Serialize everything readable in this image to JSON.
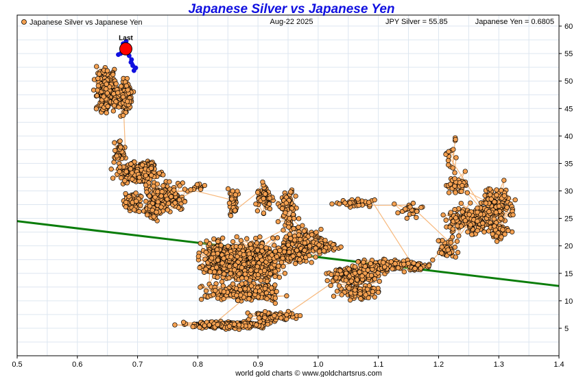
{
  "chart_data": {
    "type": "scatter",
    "title": "Japanese Silver vs Japanese Yen",
    "legend_label": "Japanese Silver vs Japanese Yen",
    "date_label": "Aug-22  2025",
    "jpy_silver_label": "JPY Silver = 55.85",
    "japanese_yen_label": "Japanese Yen = 0.6805",
    "footer": "world gold charts © www.goldchartsrus.com",
    "last_label": "Last",
    "x_ticks": [
      "0.5",
      "0.6",
      "0.7",
      "0.8",
      "0.9",
      "1.0",
      "1.1",
      "1.2",
      "1.3",
      "1.4"
    ],
    "y_ticks": [
      "5",
      "10",
      "15",
      "20",
      "25",
      "30",
      "35",
      "40",
      "45",
      "50",
      "55",
      "60"
    ],
    "xlim": [
      0.5,
      1.4
    ],
    "ylim": [
      0,
      62
    ],
    "grid": true,
    "legend_position": "top-left",
    "last_point": {
      "x": 0.6805,
      "y": 55.85
    },
    "trend_line": {
      "x1": 0.5,
      "y1": 24.5,
      "x2": 1.4,
      "y2": 12.7
    },
    "recent_series": [
      {
        "x": 0.672,
        "y": 55.0
      },
      {
        "x": 0.676,
        "y": 56.8
      },
      {
        "x": 0.681,
        "y": 57.2
      },
      {
        "x": 0.686,
        "y": 54.6
      },
      {
        "x": 0.689,
        "y": 53.4
      },
      {
        "x": 0.692,
        "y": 52.8
      },
      {
        "x": 0.694,
        "y": 51.9
      },
      {
        "x": 0.697,
        "y": 52.4
      },
      {
        "x": 0.69,
        "y": 53.9
      },
      {
        "x": 0.684,
        "y": 55.4
      },
      {
        "x": 0.668,
        "y": 54.8
      }
    ],
    "history_clusters": [
      {
        "cx": 0.648,
        "cy": 48.5,
        "sx": 0.013,
        "sy": 2.8,
        "n": 190
      },
      {
        "cx": 0.68,
        "cy": 47.0,
        "sx": 0.011,
        "sy": 2.2,
        "n": 110
      },
      {
        "cx": 0.67,
        "cy": 37.0,
        "sx": 0.007,
        "sy": 1.5,
        "n": 40
      },
      {
        "cx": 0.7,
        "cy": 33.5,
        "sx": 0.026,
        "sy": 1.5,
        "n": 190
      },
      {
        "cx": 0.745,
        "cy": 29.0,
        "sx": 0.025,
        "sy": 2.0,
        "n": 160
      },
      {
        "cx": 0.69,
        "cy": 28.0,
        "sx": 0.012,
        "sy": 1.5,
        "n": 50
      },
      {
        "cx": 0.725,
        "cy": 26.0,
        "sx": 0.01,
        "sy": 1.0,
        "n": 35
      },
      {
        "cx": 0.805,
        "cy": 30.5,
        "sx": 0.012,
        "sy": 0.5,
        "n": 12
      },
      {
        "cx": 0.86,
        "cy": 28.0,
        "sx": 0.007,
        "sy": 2.0,
        "n": 40
      },
      {
        "cx": 0.91,
        "cy": 28.5,
        "sx": 0.01,
        "sy": 1.8,
        "n": 60
      },
      {
        "cx": 0.95,
        "cy": 27.0,
        "sx": 0.012,
        "sy": 2.2,
        "n": 60
      },
      {
        "cx": 0.975,
        "cy": 21.5,
        "sx": 0.025,
        "sy": 1.6,
        "n": 70
      },
      {
        "cx": 0.835,
        "cy": 17.5,
        "sx": 0.023,
        "sy": 2.6,
        "n": 260
      },
      {
        "cx": 0.895,
        "cy": 17.0,
        "sx": 0.035,
        "sy": 3.0,
        "n": 360
      },
      {
        "cx": 0.96,
        "cy": 18.5,
        "sx": 0.03,
        "sy": 1.5,
        "n": 120
      },
      {
        "cx": 1.01,
        "cy": 20.0,
        "sx": 0.02,
        "sy": 1.0,
        "n": 40
      },
      {
        "cx": 0.875,
        "cy": 11.5,
        "sx": 0.045,
        "sy": 1.2,
        "n": 180
      },
      {
        "cx": 0.85,
        "cy": 5.6,
        "sx": 0.05,
        "sy": 0.45,
        "n": 190
      },
      {
        "cx": 0.925,
        "cy": 7.2,
        "sx": 0.03,
        "sy": 0.6,
        "n": 70
      },
      {
        "cx": 1.06,
        "cy": 14.5,
        "sx": 0.035,
        "sy": 1.4,
        "n": 130
      },
      {
        "cx": 1.07,
        "cy": 11.5,
        "sx": 0.03,
        "sy": 1.0,
        "n": 70
      },
      {
        "cx": 1.11,
        "cy": 16.5,
        "sx": 0.04,
        "sy": 0.8,
        "n": 100
      },
      {
        "cx": 1.17,
        "cy": 16.2,
        "sx": 0.02,
        "sy": 0.6,
        "n": 30
      },
      {
        "cx": 1.065,
        "cy": 27.8,
        "sx": 0.03,
        "sy": 0.7,
        "n": 35
      },
      {
        "cx": 1.155,
        "cy": 26.5,
        "sx": 0.02,
        "sy": 1.0,
        "n": 25
      },
      {
        "cx": 1.215,
        "cy": 19.5,
        "sx": 0.018,
        "sy": 1.5,
        "n": 40
      },
      {
        "cx": 1.26,
        "cy": 25.0,
        "sx": 0.035,
        "sy": 2.0,
        "n": 180
      },
      {
        "cx": 1.295,
        "cy": 27.5,
        "sx": 0.02,
        "sy": 2.5,
        "n": 110
      },
      {
        "cx": 1.23,
        "cy": 31.0,
        "sx": 0.015,
        "sy": 1.5,
        "n": 35
      },
      {
        "cx": 1.3,
        "cy": 22.5,
        "sx": 0.015,
        "sy": 1.0,
        "n": 40
      },
      {
        "cx": 1.22,
        "cy": 36.0,
        "sx": 0.008,
        "sy": 2.0,
        "n": 12
      },
      {
        "cx": 1.228,
        "cy": 39.5,
        "sx": 0.003,
        "sy": 0.3,
        "n": 3
      }
    ]
  }
}
